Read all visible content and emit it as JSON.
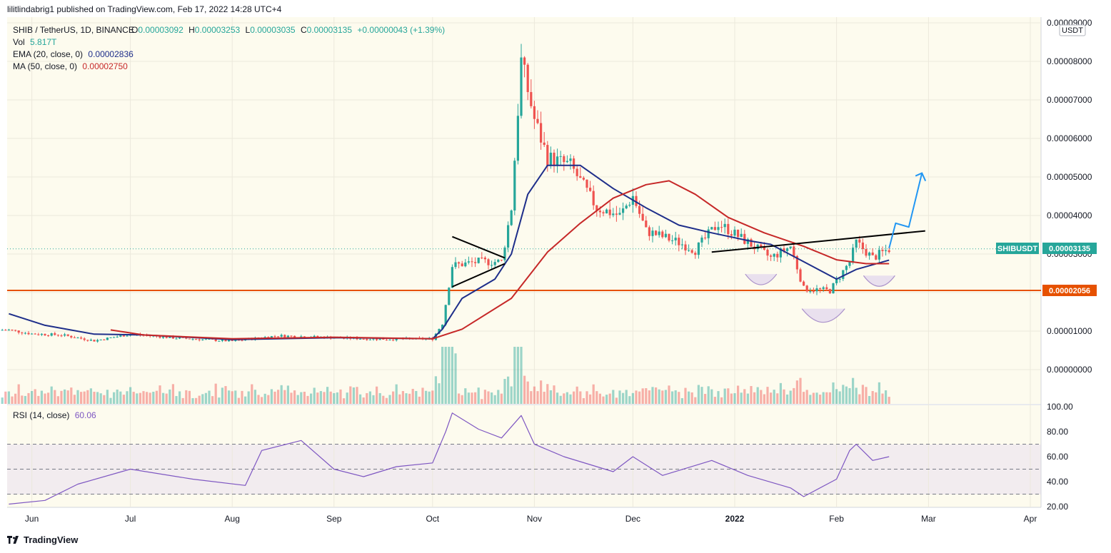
{
  "header": {
    "published": "lilitlindabrig1 published on TradingView.com, Feb 17, 2022 14:28 UTC+4"
  },
  "footer": {
    "brand": "TradingView"
  },
  "colors": {
    "background": "#fdfbee",
    "up": "#26a69a",
    "down": "#ef5350",
    "ema": "#1e2e8a",
    "ma": "#c62828",
    "rsi": "#7e57c2",
    "support": "#e65100",
    "forecast": "#2196f3",
    "neckline": "#000000"
  },
  "legend": {
    "symbol_line": "SHIB / TetherUS, 1D, BINANCE",
    "o_label": "O",
    "o_value": "0.00003092",
    "h_label": "H",
    "h_value": "0.00003253",
    "l_label": "L",
    "l_value": "0.00003035",
    "c_label": "C",
    "c_value": "0.00003135",
    "change": "+0.00000043 (+1.39%)",
    "vol_label": "Vol",
    "vol_value": "5.817T",
    "ema_label": "EMA (20, close, 0)",
    "ema_value": "0.00002836",
    "ma_label": "MA (50, close, 0)",
    "ma_value": "0.00002750"
  },
  "rsi_panel": {
    "label": "RSI (14, close)",
    "value": "60.06"
  },
  "price_axis": {
    "currency": "USDT",
    "ticks": [
      "0.00009000",
      "0.00008000",
      "0.00007000",
      "0.00006000",
      "0.00005000",
      "0.00004000",
      "0.00003000",
      "0.00002000",
      "0.00001000",
      "0.00000000"
    ]
  },
  "rsi_axis": {
    "ticks": [
      "100.00",
      "80.00",
      "60.00",
      "40.00",
      "20.00"
    ]
  },
  "time_axis": {
    "ticks": [
      "Jun",
      "Jul",
      "Aug",
      "Sep",
      "Oct",
      "Nov",
      "Dec",
      "2022",
      "Feb",
      "Mar",
      "Apr"
    ]
  },
  "price_tags": {
    "symbol": "SHIBUSDT",
    "last": "0.00003135",
    "support": "0.00002056"
  },
  "chart_data": {
    "type": "candlestick",
    "symbol": "SHIB / TetherUS",
    "interval": "1D",
    "exchange": "BINANCE",
    "y_range": [
      0.0,
      9e-05
    ],
    "rsi_range": [
      20,
      100
    ],
    "rsi_levels": [
      70,
      50,
      30
    ],
    "support_level": 2.056e-05,
    "last_price": 3.135e-05,
    "ema_series": [
      [
        "2021-05-25",
        1.45e-05
      ],
      [
        "2021-06-05",
        1.15e-05
      ],
      [
        "2021-06-20",
        9.2e-06
      ],
      [
        "2021-07-05",
        9e-06
      ],
      [
        "2021-08-01",
        7.8e-06
      ],
      [
        "2021-09-01",
        8.3e-06
      ],
      [
        "2021-10-01",
        8e-06
      ],
      [
        "2021-10-04",
        1.05e-05
      ],
      [
        "2021-10-10",
        1.85e-05
      ],
      [
        "2021-10-20",
        2.35e-05
      ],
      [
        "2021-10-25",
        3e-05
      ],
      [
        "2021-10-30",
        4.55e-05
      ],
      [
        "2021-11-05",
        5.3e-05
      ],
      [
        "2021-11-15",
        5.3e-05
      ],
      [
        "2021-11-25",
        4.7e-05
      ],
      [
        "2021-12-05",
        4.2e-05
      ],
      [
        "2021-12-15",
        3.75e-05
      ],
      [
        "2021-12-25",
        3.55e-05
      ],
      [
        "2022-01-05",
        3.35e-05
      ],
      [
        "2022-01-12",
        3.25e-05
      ],
      [
        "2022-01-22",
        2.8e-05
      ],
      [
        "2022-02-01",
        2.35e-05
      ],
      [
        "2022-02-07",
        2.6e-05
      ],
      [
        "2022-02-17",
        2.84e-05
      ]
    ],
    "ma_series": [
      [
        "2021-06-25",
        1.03e-05
      ],
      [
        "2021-07-05",
        9e-06
      ],
      [
        "2021-08-01",
        8e-06
      ],
      [
        "2021-09-01",
        8.4e-06
      ],
      [
        "2021-10-01",
        8e-06
      ],
      [
        "2021-10-10",
        1.05e-05
      ],
      [
        "2021-10-25",
        1.85e-05
      ],
      [
        "2021-11-05",
        3.05e-05
      ],
      [
        "2021-11-15",
        3.8e-05
      ],
      [
        "2021-11-25",
        4.45e-05
      ],
      [
        "2021-12-05",
        4.8e-05
      ],
      [
        "2021-12-12",
        4.9e-05
      ],
      [
        "2021-12-20",
        4.55e-05
      ],
      [
        "2021-12-30",
        3.95e-05
      ],
      [
        "2022-01-10",
        3.55e-05
      ],
      [
        "2022-01-22",
        3.2e-05
      ],
      [
        "2022-02-01",
        2.85e-05
      ],
      [
        "2022-02-10",
        2.75e-05
      ],
      [
        "2022-02-17",
        2.75e-05
      ]
    ],
    "close_series": [
      [
        "2021-05-25",
        1.03e-05
      ],
      [
        "2021-06-01",
        9.3e-06
      ],
      [
        "2021-06-10",
        9e-06
      ],
      [
        "2021-06-20",
        7.5e-06
      ],
      [
        "2021-07-01",
        9.2e-06
      ],
      [
        "2021-07-15",
        8.2e-06
      ],
      [
        "2021-08-01",
        7.4e-06
      ],
      [
        "2021-08-15",
        8.8e-06
      ],
      [
        "2021-09-01",
        8.3e-06
      ],
      [
        "2021-09-15",
        7.9e-06
      ],
      [
        "2021-10-01",
        8e-06
      ],
      [
        "2021-10-04",
        1.2e-05
      ],
      [
        "2021-10-07",
        2.7e-05
      ],
      [
        "2021-10-15",
        2.8e-05
      ],
      [
        "2021-10-22",
        2.8e-05
      ],
      [
        "2021-10-25",
        4.2e-05
      ],
      [
        "2021-10-28",
        8e-05
      ],
      [
        "2021-11-01",
        6.5e-05
      ],
      [
        "2021-11-05",
        5.5e-05
      ],
      [
        "2021-11-12",
        5.3e-05
      ],
      [
        "2021-11-20",
        4.2e-05
      ],
      [
        "2021-11-27",
        4e-05
      ],
      [
        "2021-12-01",
        4.5e-05
      ],
      [
        "2021-12-05",
        3.6e-05
      ],
      [
        "2021-12-15",
        3.3e-05
      ],
      [
        "2021-12-20",
        3.1e-05
      ],
      [
        "2021-12-27",
        3.8e-05
      ],
      [
        "2022-01-05",
        3.3e-05
      ],
      [
        "2022-01-12",
        2.9e-05
      ],
      [
        "2022-01-18",
        3.2e-05
      ],
      [
        "2022-01-22",
        2.1e-05
      ],
      [
        "2022-01-30",
        2.05e-05
      ],
      [
        "2022-02-05",
        2.8e-05
      ],
      [
        "2022-02-07",
        3.3e-05
      ],
      [
        "2022-02-12",
        2.9e-05
      ],
      [
        "2022-02-17",
        3.13e-05
      ]
    ],
    "rsi_series": [
      [
        "2021-05-25",
        22
      ],
      [
        "2021-06-05",
        25
      ],
      [
        "2021-06-15",
        38
      ],
      [
        "2021-07-01",
        50
      ],
      [
        "2021-07-20",
        42
      ],
      [
        "2021-08-05",
        37
      ],
      [
        "2021-08-10",
        65
      ],
      [
        "2021-08-22",
        73
      ],
      [
        "2021-09-01",
        50
      ],
      [
        "2021-09-10",
        44
      ],
      [
        "2021-09-20",
        52
      ],
      [
        "2021-10-01",
        55
      ],
      [
        "2021-10-05",
        80
      ],
      [
        "2021-10-07",
        95
      ],
      [
        "2021-10-15",
        82
      ],
      [
        "2021-10-22",
        75
      ],
      [
        "2021-10-28",
        93
      ],
      [
        "2021-11-01",
        70
      ],
      [
        "2021-11-10",
        60
      ],
      [
        "2021-11-25",
        48
      ],
      [
        "2021-12-01",
        60
      ],
      [
        "2021-12-10",
        45
      ],
      [
        "2021-12-25",
        57
      ],
      [
        "2022-01-05",
        45
      ],
      [
        "2022-01-18",
        35
      ],
      [
        "2022-01-22",
        28
      ],
      [
        "2022-02-01",
        42
      ],
      [
        "2022-02-05",
        65
      ],
      [
        "2022-02-07",
        70
      ],
      [
        "2022-02-12",
        57
      ],
      [
        "2022-02-17",
        60
      ]
    ],
    "trendlines": [
      {
        "name": "neckline",
        "points": [
          [
            "2021-12-25",
            3.05e-05
          ],
          [
            "2022-02-28",
            3.6e-05
          ]
        ]
      },
      {
        "name": "triangle-upper",
        "points": [
          [
            "2021-10-07",
            3.45e-05
          ],
          [
            "2021-10-23",
            2.9e-05
          ]
        ]
      },
      {
        "name": "triangle-lower",
        "points": [
          [
            "2021-10-07",
            2.15e-05
          ],
          [
            "2021-10-23",
            2.75e-05
          ]
        ]
      }
    ],
    "forecast_path": [
      [
        "2022-02-17",
        3.15e-05
      ],
      [
        "2022-02-19",
        3.8e-05
      ],
      [
        "2022-02-23",
        3.7e-05
      ],
      [
        "2022-02-27",
        5.1e-05
      ]
    ],
    "patterns": [
      "inverse head and shoulders"
    ]
  }
}
